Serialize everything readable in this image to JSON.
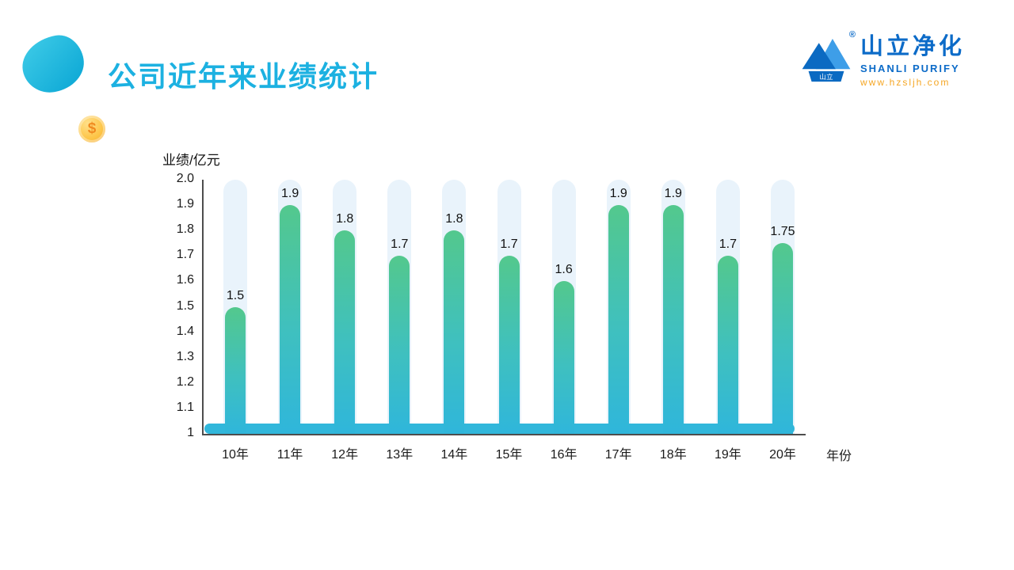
{
  "slide": {
    "title": "公司近年来业绩统计"
  },
  "decorations": {
    "coin_symbol": "$"
  },
  "logo": {
    "brand_cn": "山立净化",
    "brand_en": "SHANLI PURIFY",
    "website": "www.hzsljh.com",
    "icon_label": "山立",
    "registered_mark": "®"
  },
  "chart_data": {
    "type": "bar",
    "title": "公司近年来业绩统计",
    "ylabel": "业绩/亿元",
    "xlabel": "年份",
    "categories": [
      "10年",
      "11年",
      "12年",
      "13年",
      "14年",
      "15年",
      "16年",
      "17年",
      "18年",
      "19年",
      "20年"
    ],
    "values": [
      1.5,
      1.9,
      1.8,
      1.7,
      1.8,
      1.7,
      1.6,
      1.9,
      1.9,
      1.7,
      1.75
    ],
    "value_labels": [
      "1.5",
      "1.9",
      "1.8",
      "1.7",
      "1.8",
      "1.7",
      "1.6",
      "1.9",
      "1.9",
      "1.7",
      "1.75"
    ],
    "y_ticks": [
      "2.0",
      "1.9",
      "1.8",
      "1.7",
      "1.6",
      "1.5",
      "1.4",
      "1.3",
      "1.2",
      "1.1",
      "1"
    ],
    "ylim": [
      1,
      2
    ],
    "grid": false,
    "legend": false,
    "colors": {
      "bar_top": "#53c88d",
      "bar_bottom": "#2fb6db",
      "track": "#e9f3fb",
      "accent": "#1cb1e1"
    }
  }
}
